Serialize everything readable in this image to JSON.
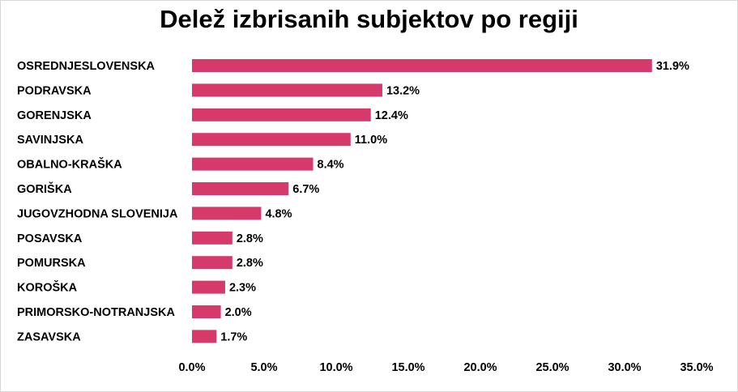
{
  "chart_data": {
    "type": "bar",
    "orientation": "horizontal",
    "title": "Delež izbrisanih subjektov po regiji",
    "categories": [
      "OSREDNJESLOVENSKA",
      "PODRAVSKA",
      "GORENJSKA",
      "SAVINJSKA",
      "OBALNO-KRAŠKA",
      "GORIŠKA",
      "JUGOVZHODNA SLOVENIJA",
      "POSAVSKA",
      "POMURSKA",
      "KOROŠKA",
      "PRIMORSKO-NOTRANJSKA",
      "ZASAVSKA"
    ],
    "values": [
      31.9,
      13.2,
      12.4,
      11.0,
      8.4,
      6.7,
      4.8,
      2.8,
      2.8,
      2.3,
      2.0,
      1.7
    ],
    "value_labels": [
      "31.9%",
      "13.2%",
      "12.4%",
      "11.0%",
      "8.4%",
      "6.7%",
      "4.8%",
      "2.8%",
      "2.8%",
      "2.3%",
      "2.0%",
      "1.7%"
    ],
    "xlim": [
      0,
      35
    ],
    "x_ticks": [
      0,
      5,
      10,
      15,
      20,
      25,
      30,
      35
    ],
    "x_tick_labels": [
      "0.0%",
      "5.0%",
      "10.0%",
      "15.0%",
      "20.0%",
      "25.0%",
      "30.0%",
      "35.0%"
    ],
    "xlabel": "",
    "ylabel": "",
    "grid": false,
    "legend": "none",
    "bar_color": "#d63a6a"
  }
}
